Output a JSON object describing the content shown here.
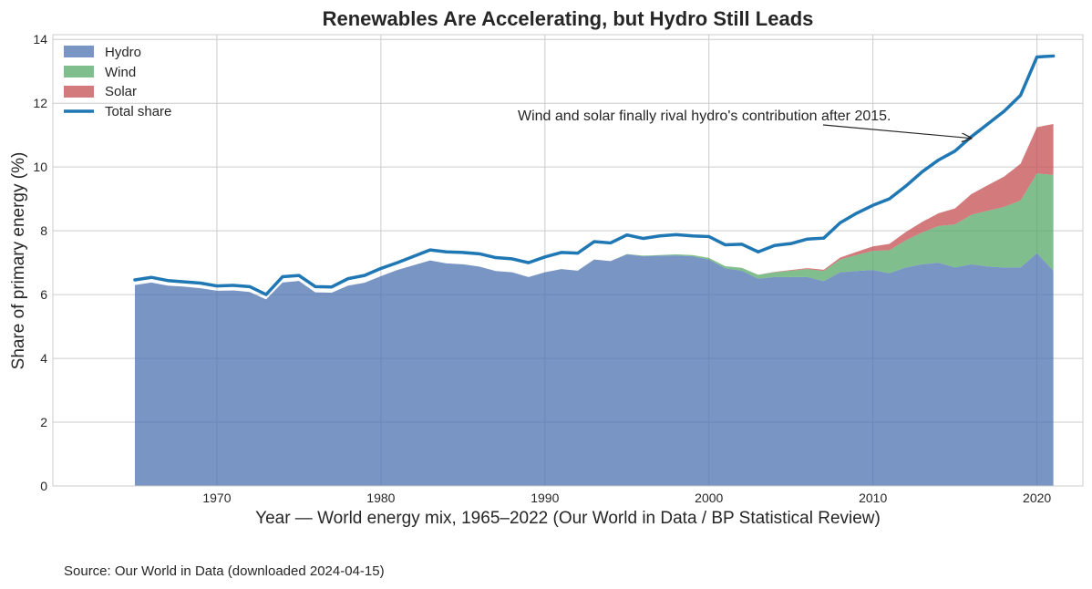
{
  "chart_data": {
    "type": "area",
    "stacked": true,
    "title": "Renewables Are Accelerating, but Hydro Still Leads",
    "xlabel": "Year — World energy mix, 1965–2022 (Our World in Data / BP Statistical Review)",
    "ylabel": "Share of primary energy (%)",
    "xlim": [
      1960,
      2022.8
    ],
    "ylim": [
      0,
      14.15
    ],
    "x_ticks": [
      1970,
      1980,
      1990,
      2000,
      2010,
      2020
    ],
    "y_ticks": [
      0,
      2,
      4,
      6,
      8,
      10,
      12,
      14
    ],
    "grid": true,
    "legend_position": "top-left",
    "x": [
      1965,
      1966,
      1967,
      1968,
      1969,
      1970,
      1971,
      1972,
      1973,
      1974,
      1975,
      1976,
      1977,
      1978,
      1979,
      1980,
      1981,
      1982,
      1983,
      1984,
      1985,
      1986,
      1987,
      1988,
      1989,
      1990,
      1991,
      1992,
      1993,
      1994,
      1995,
      1996,
      1997,
      1998,
      1999,
      2000,
      2001,
      2002,
      2003,
      2004,
      2005,
      2006,
      2007,
      2008,
      2009,
      2010,
      2011,
      2012,
      2013,
      2014,
      2015,
      2016,
      2017,
      2018,
      2019,
      2020,
      2021
    ],
    "series": [
      {
        "name": "Hydro",
        "color": "#4c72b0",
        "kind": "area",
        "values": [
          6.3,
          6.38,
          6.28,
          6.25,
          6.2,
          6.12,
          6.13,
          6.08,
          5.85,
          6.38,
          6.43,
          6.07,
          6.06,
          6.28,
          6.37,
          6.58,
          6.77,
          6.92,
          7.07,
          6.98,
          6.95,
          6.88,
          6.74,
          6.7,
          6.55,
          6.7,
          6.8,
          6.75,
          7.1,
          7.05,
          7.26,
          7.2,
          7.22,
          7.23,
          7.2,
          7.1,
          6.82,
          6.75,
          6.5,
          6.55,
          6.55,
          6.55,
          6.42,
          6.7,
          6.74,
          6.77,
          6.67,
          6.85,
          6.95,
          7.0,
          6.85,
          6.95,
          6.88,
          6.85,
          6.85,
          7.3,
          6.75
        ]
      },
      {
        "name": "Wind",
        "color": "#55a868",
        "kind": "area",
        "values": [
          0,
          0,
          0,
          0,
          0,
          0,
          0,
          0,
          0,
          0,
          0,
          0,
          0,
          0,
          0,
          0,
          0,
          0,
          0,
          0,
          0,
          0,
          0,
          0,
          0,
          0,
          0,
          0,
          0,
          0,
          0.01,
          0.02,
          0.02,
          0.03,
          0.04,
          0.05,
          0.07,
          0.09,
          0.12,
          0.15,
          0.2,
          0.25,
          0.32,
          0.4,
          0.5,
          0.6,
          0.72,
          0.85,
          1.0,
          1.15,
          1.35,
          1.55,
          1.75,
          1.9,
          2.1,
          2.5,
          3.0
        ]
      },
      {
        "name": "Solar",
        "color": "#c44e52",
        "kind": "area",
        "values": [
          0,
          0,
          0,
          0,
          0,
          0,
          0,
          0,
          0,
          0,
          0,
          0,
          0,
          0,
          0,
          0,
          0,
          0,
          0,
          0,
          0,
          0,
          0,
          0,
          0,
          0,
          0,
          0,
          0,
          0,
          0,
          0,
          0,
          0,
          0,
          0,
          0,
          0,
          0,
          0.01,
          0.02,
          0.03,
          0.04,
          0.06,
          0.1,
          0.14,
          0.2,
          0.26,
          0.33,
          0.4,
          0.5,
          0.65,
          0.8,
          0.95,
          1.15,
          1.45,
          1.6
        ]
      },
      {
        "name": "Total share",
        "color": "#1f77b4",
        "kind": "line",
        "values": [
          6.46,
          6.54,
          6.44,
          6.4,
          6.36,
          6.27,
          6.29,
          6.25,
          6.0,
          6.56,
          6.6,
          6.25,
          6.24,
          6.5,
          6.6,
          6.82,
          7.0,
          7.2,
          7.4,
          7.34,
          7.32,
          7.28,
          7.16,
          7.12,
          7.0,
          7.18,
          7.32,
          7.3,
          7.66,
          7.62,
          7.87,
          7.76,
          7.84,
          7.88,
          7.84,
          7.82,
          7.56,
          7.58,
          7.34,
          7.54,
          7.6,
          7.74,
          7.77,
          8.25,
          8.55,
          8.8,
          9.0,
          9.4,
          9.85,
          10.22,
          10.5,
          10.95,
          11.35,
          11.75,
          12.25,
          13.45,
          13.48
        ]
      }
    ],
    "annotations": [
      {
        "text": "Wind and solar finally rival hydro's contribution after 2015.",
        "arrow_to": [
          2016,
          10.9
        ]
      }
    ]
  },
  "footer": {
    "source": "Source: Our World in Data (downloaded 2024-04-15)"
  }
}
